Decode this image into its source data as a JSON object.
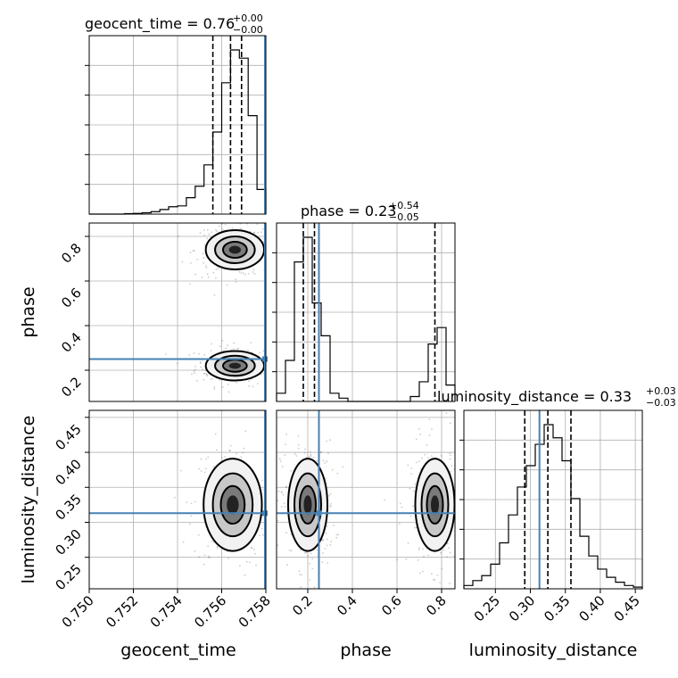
{
  "chart_data": {
    "type": "corner",
    "parameters": [
      "geocent_time",
      "phase",
      "luminosity_distance"
    ],
    "truths": {
      "geocent_time": 0.758,
      "phase": 0.25,
      "luminosity_distance": 0.313
    },
    "diagonal": [
      {
        "name": "geocent_time",
        "title_main": "geocent_time = 0.76",
        "title_sup": "+0.00",
        "title_sub": "−0.00",
        "range": [
          0.75,
          0.758
        ],
        "ticks": [
          "0.750",
          "0.752",
          "0.754",
          "0.756",
          "0.758"
        ],
        "tick_values": [
          0.75,
          0.752,
          0.754,
          0.756,
          0.758
        ],
        "xlabel": "geocent_time",
        "bin_edges": [
          0.75,
          0.7504,
          0.7508,
          0.7512,
          0.7516,
          0.752,
          0.7524,
          0.7528,
          0.7532,
          0.7536,
          0.754,
          0.7544,
          0.7548,
          0.7552,
          0.7556,
          0.756,
          0.7564,
          0.7568,
          0.7572,
          0.7576,
          0.758
        ],
        "counts": [
          0,
          0,
          0,
          0,
          0.003,
          0.004,
          0.008,
          0.015,
          0.028,
          0.045,
          0.05,
          0.1,
          0.17,
          0.3,
          0.5,
          0.8,
          1.0,
          0.95,
          0.6,
          0.15
        ],
        "quantiles": [
          0.7556,
          0.7564,
          0.7569
        ]
      },
      {
        "name": "phase",
        "title_main": "phase = 0.23",
        "title_sup": "+0.54",
        "title_sub": "−0.05",
        "range": [
          0.06,
          0.86
        ],
        "ticks": [
          "0.2",
          "0.4",
          "0.6",
          "0.8"
        ],
        "tick_values": [
          0.2,
          0.4,
          0.6,
          0.8
        ],
        "xlabel": "phase",
        "bin_edges": [
          0.06,
          0.1,
          0.14,
          0.18,
          0.22,
          0.26,
          0.3,
          0.34,
          0.38,
          0.42,
          0.46,
          0.5,
          0.54,
          0.58,
          0.62,
          0.66,
          0.7,
          0.74,
          0.78,
          0.82,
          0.86
        ],
        "counts": [
          0.05,
          0.25,
          0.85,
          1.0,
          0.6,
          0.4,
          0.05,
          0.02,
          0,
          0,
          0,
          0,
          0,
          0,
          0,
          0.03,
          0.12,
          0.35,
          0.45,
          0.1
        ],
        "quantiles": [
          0.18,
          0.23,
          0.77
        ]
      },
      {
        "name": "luminosity_distance",
        "title_main": "luminosity_distance = 0.33",
        "title_sup": "+0.03",
        "title_sub": "−0.03",
        "range": [
          0.205,
          0.46
        ],
        "ticks": [
          "0.25",
          "0.30",
          "0.35",
          "0.40",
          "0.45"
        ],
        "tick_values": [
          0.25,
          0.3,
          0.35,
          0.4,
          0.45
        ],
        "xlabel": "luminosity_distance",
        "bin_edges": [
          0.205,
          0.21775,
          0.2305,
          0.24325,
          0.256,
          0.26875,
          0.2815,
          0.29425,
          0.307,
          0.31975,
          0.3325,
          0.34525,
          0.358,
          0.37075,
          0.3835,
          0.39625,
          0.409,
          0.42175,
          0.4345,
          0.44725,
          0.46
        ],
        "counts": [
          0.02,
          0.05,
          0.08,
          0.15,
          0.28,
          0.45,
          0.62,
          0.75,
          0.88,
          1.0,
          0.92,
          0.78,
          0.55,
          0.32,
          0.2,
          0.12,
          0.07,
          0.04,
          0.02,
          0.01
        ],
        "quantiles": [
          0.292,
          0.325,
          0.358
        ]
      }
    ],
    "off_diagonal": [
      {
        "x": "geocent_time",
        "y": "phase",
        "ylabel": "phase",
        "yticks": [
          "0.2",
          "0.4",
          "0.6",
          "0.8"
        ],
        "ytick_values": [
          0.2,
          0.4,
          0.6,
          0.8
        ],
        "modes": [
          {
            "cx": 0.7566,
            "cy": 0.22,
            "sx": 0.0006,
            "sy": 0.03
          },
          {
            "cx": 0.7566,
            "cy": 0.74,
            "sx": 0.0006,
            "sy": 0.04
          }
        ]
      },
      {
        "x": "geocent_time",
        "y": "luminosity_distance",
        "ylabel": "luminosity_distance",
        "yticks": [
          "0.25",
          "0.30",
          "0.35",
          "0.40",
          "0.45"
        ],
        "ytick_values": [
          0.25,
          0.3,
          0.35,
          0.4,
          0.45
        ],
        "modes": [
          {
            "cx": 0.7565,
            "cy": 0.325,
            "sx": 0.0006,
            "sy": 0.03
          }
        ]
      },
      {
        "x": "phase",
        "y": "luminosity_distance",
        "modes": [
          {
            "cx": 0.2,
            "cy": 0.325,
            "sx": 0.04,
            "sy": 0.03
          },
          {
            "cx": 0.77,
            "cy": 0.325,
            "sx": 0.04,
            "sy": 0.03
          }
        ]
      }
    ],
    "colors": {
      "truth": "#4682b4",
      "hist": "#000000",
      "grid": "#b0b0b0"
    },
    "grid": true
  }
}
